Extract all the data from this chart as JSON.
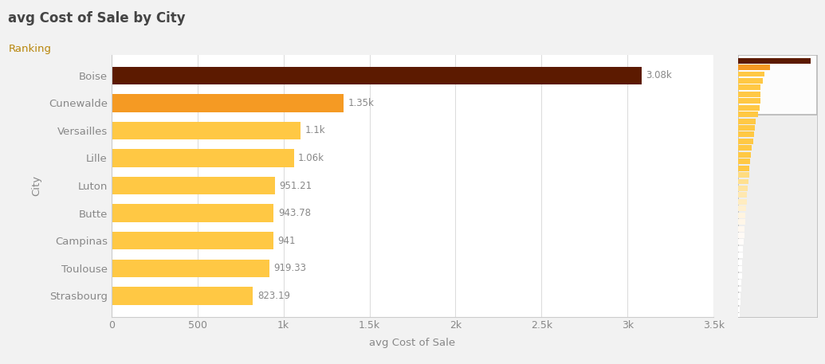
{
  "title": "avg Cost of Sale by City",
  "subtitle": "Ranking",
  "xlabel": "avg Cost of Sale",
  "ylabel": "City",
  "categories": [
    "Strasbourg",
    "Toulouse",
    "Campinas",
    "Butte",
    "Luton",
    "Lille",
    "Versailles",
    "Cunewalde",
    "Boise"
  ],
  "values": [
    823.19,
    919.33,
    941,
    943.78,
    951.21,
    1060,
    1100,
    1350,
    3080
  ],
  "labels": [
    "823.19",
    "919.33",
    "941",
    "943.78",
    "951.21",
    "1.06k",
    "1.1k",
    "1.35k",
    "3.08k"
  ],
  "bar_colors": [
    "#FFC844",
    "#FFC844",
    "#FFC844",
    "#FFC844",
    "#FFC844",
    "#FFC844",
    "#FFC844",
    "#F59A23",
    "#5C1A00"
  ],
  "background_color": "#F2F2F2",
  "plot_bg_color": "#FFFFFF",
  "title_color": "#444444",
  "subtitle_color": "#B8860B",
  "label_color": "#888888",
  "ytick_color": "#666666",
  "xtick_color": "#888888",
  "xlim": [
    0,
    3500
  ],
  "xtick_values": [
    0,
    500,
    1000,
    1500,
    2000,
    2500,
    3000,
    3500
  ],
  "xtick_labels": [
    "0",
    "500",
    "1k",
    "1.5k",
    "2k",
    "2.5k",
    "3k",
    "3.5k"
  ],
  "minimap_values": [
    3080,
    1350,
    1100,
    1060,
    951.21,
    943.78,
    941,
    919.33,
    823.19,
    750,
    700,
    660,
    620,
    580,
    540,
    510,
    480,
    450,
    420,
    390,
    370,
    350,
    330,
    310,
    290,
    270,
    250,
    230,
    210,
    190,
    175,
    160,
    145,
    130,
    115,
    100,
    85,
    70,
    55
  ],
  "minimap_colors": [
    "#5C1A00",
    "#F59A23",
    "#FFC844",
    "#FFC844",
    "#FFC844",
    "#FFC844",
    "#FFC844",
    "#FFC844",
    "#FFC844",
    "#FFC844",
    "#FFC844",
    "#FFC844",
    "#FFC844",
    "#FFC844",
    "#FFC844",
    "#FFC844",
    "#FFC844",
    "#FFDC80",
    "#FFE090",
    "#FFE4A0",
    "#FFE8B0",
    "#FFECC0",
    "#FFF0D0",
    "#FFF4E0",
    "#FFF6E8",
    "#FFF8F0",
    "#FFFAF5",
    "#FFFCFA",
    "#FFFEFE",
    "#FFFFFF",
    "#FFFFFF",
    "#FFFFFF",
    "#FFFFFF",
    "#FFFFFF",
    "#FFFFFF",
    "#FFFFFF",
    "#FFFFFF",
    "#FFFFFF",
    "#FFFFFF"
  ]
}
